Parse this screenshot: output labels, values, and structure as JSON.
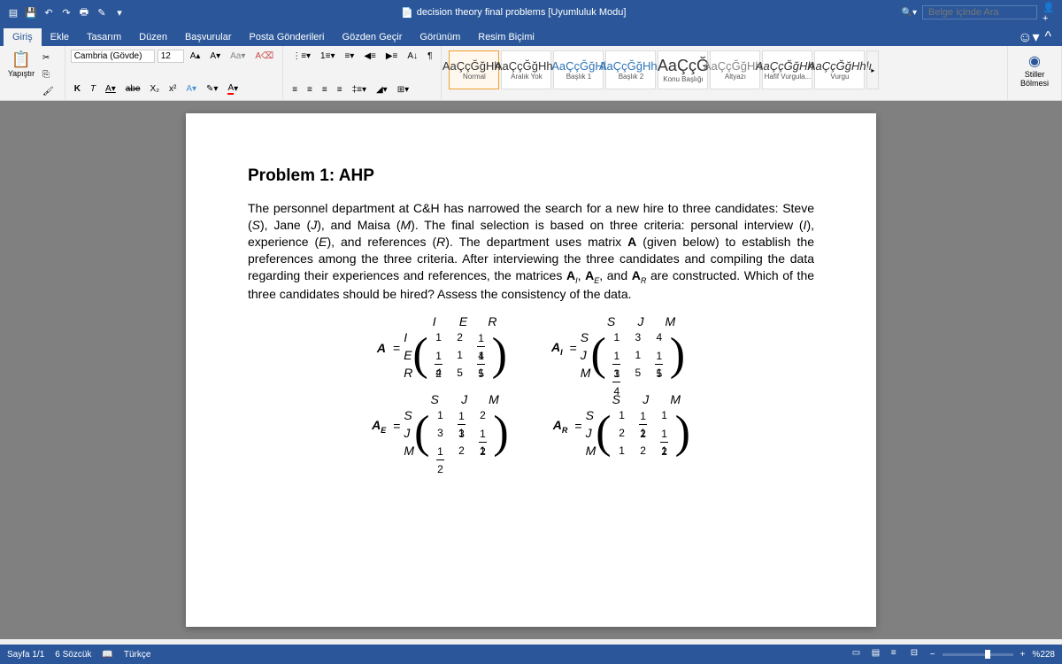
{
  "titlebar": {
    "title": "decision theory final problems [Uyumluluk Modu]",
    "search_placeholder": "Belge içinde Ara"
  },
  "tabs": {
    "items": [
      "Giriş",
      "Ekle",
      "Tasarım",
      "Düzen",
      "Başvurular",
      "Posta Gönderileri",
      "Gözden Geçir",
      "Görünüm",
      "Resim Biçimi"
    ],
    "active_index": 0
  },
  "ribbon": {
    "paste_label": "Yapıştır",
    "font_name": "Cambria (Gövde)",
    "font_size": "12",
    "bold": "K",
    "italic": "T",
    "underline": "A",
    "strike": "abe",
    "subscript": "X₂",
    "superscript": "x²",
    "styles": [
      {
        "preview": "AaÇçĞğHhlı",
        "label": "Normal",
        "big": false
      },
      {
        "preview": "AaÇçĞğHhlı",
        "label": "Aralık Yok",
        "big": false
      },
      {
        "preview": "AaÇçĞğHl",
        "label": "Başlık 1",
        "big": false,
        "color": "#2e74b5"
      },
      {
        "preview": "AaÇçĞğHhlı",
        "label": "Başlık 2",
        "big": false,
        "color": "#2e74b5"
      },
      {
        "preview": "AaÇçĞ",
        "label": "Konu Başlığı",
        "big": true
      },
      {
        "preview": "AaÇçĞğHhlı",
        "label": "Altyazı",
        "big": false,
        "color": "#888"
      },
      {
        "preview": "AaÇçĞğHhlı",
        "label": "Hafif Vurgula...",
        "big": false,
        "italic": true
      },
      {
        "preview": "AaÇçĞğHhlı",
        "label": "Vurgu",
        "big": false,
        "italic": true
      }
    ],
    "styles_pane_label": "Stiller Bölmesi"
  },
  "document": {
    "heading": "Problem 1: AHP",
    "paragraph": "The personnel department at C&H has narrowed the search for a new hire to three candidates: Steve (S), Jane (J), and Maisa (M). The final selection is based on three criteria: personal interview (I), experience (E), and references (R). The department uses matrix A (given below) to establish the preferences among the three criteria. After interviewing the three candidates and compiling the data regarding their experiences and references, the matrices Aᴵ, Aᴱ, and Aᴿ are constructed. Which of the three candidates should be hired? Assess the consistency of the data.",
    "matrices": {
      "A": {
        "label": "A",
        "sub": "",
        "col_headers": [
          "I",
          "E",
          "R"
        ],
        "row_headers": [
          "I",
          "E",
          "R"
        ],
        "cells": [
          "1",
          "2",
          "¼",
          "½",
          "1",
          "⅕",
          "4",
          "5",
          "1"
        ]
      },
      "AI": {
        "label": "A",
        "sub": "I",
        "col_headers": [
          "S",
          "J",
          "M"
        ],
        "row_headers": [
          "S",
          "J",
          "M"
        ],
        "cells": [
          "1",
          "3",
          "4",
          "⅓",
          "1",
          "⅕",
          "¼",
          "5",
          "1"
        ]
      },
      "AE": {
        "label": "A",
        "sub": "E",
        "col_headers": [
          "S",
          "J",
          "M"
        ],
        "row_headers": [
          "S",
          "J",
          "M"
        ],
        "cells": [
          "1",
          "⅓",
          "2",
          "3",
          "1",
          "½",
          "½",
          "2",
          "1"
        ]
      },
      "AR": {
        "label": "A",
        "sub": "R",
        "col_headers": [
          "S",
          "J",
          "M"
        ],
        "row_headers": [
          "S",
          "J",
          "M"
        ],
        "cells": [
          "1",
          "½",
          "1",
          "2",
          "1",
          "½",
          "1",
          "2",
          "1"
        ]
      }
    }
  },
  "statusbar": {
    "page": "Sayfa 1/1",
    "words": "6 Sözcük",
    "lang": "Türkçe",
    "zoom": "%228"
  },
  "colors": {
    "accent": "#2b579a",
    "ribbon_bg": "#f3f3f3",
    "doc_bg": "#808080"
  }
}
